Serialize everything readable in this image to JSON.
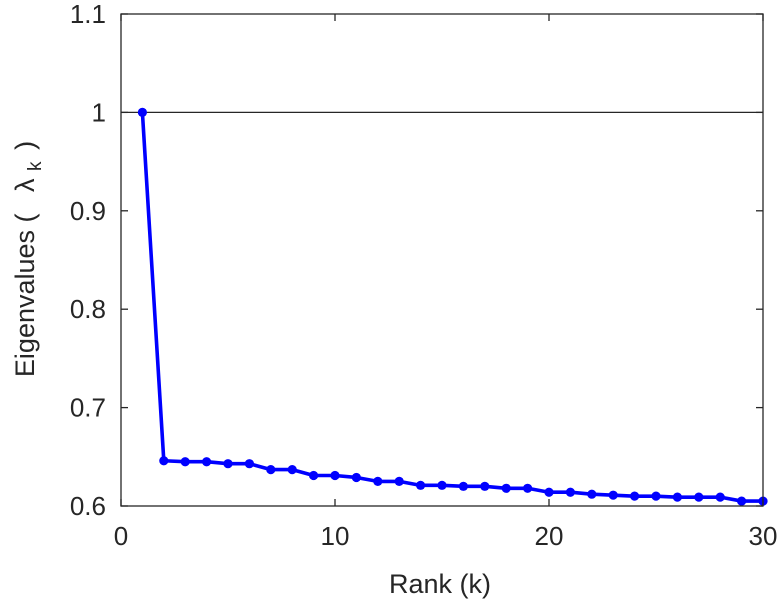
{
  "chart_data": {
    "type": "line",
    "title": "",
    "xlabel": "Rank (k)",
    "ylabel": {
      "prefix": "Eigenvalues (",
      "symbol": "λ",
      "subscript": "k",
      "suffix": ")"
    },
    "xlim": [
      0,
      30
    ],
    "ylim": [
      0.6,
      1.1
    ],
    "xticks": [
      0,
      10,
      20,
      30
    ],
    "xtick_labels": [
      "0",
      "10",
      "20",
      "30"
    ],
    "yticks": [
      0.6,
      0.7,
      0.8,
      0.9,
      1.0,
      1.1
    ],
    "ytick_labels": [
      "0.6",
      "0.7",
      "0.8",
      "0.9",
      "1",
      "1.1"
    ],
    "reference_line": {
      "y": 1.0,
      "color": "#262626"
    },
    "grid": false,
    "legend": "none",
    "series": [
      {
        "color": "#0000ff",
        "marker": "dot",
        "x": [
          1,
          2,
          3,
          4,
          5,
          6,
          7,
          8,
          9,
          10,
          11,
          12,
          13,
          14,
          15,
          16,
          17,
          18,
          19,
          20,
          21,
          22,
          23,
          24,
          25,
          26,
          27,
          28,
          29,
          30
        ],
        "y": [
          1.0,
          0.646,
          0.645,
          0.645,
          0.643,
          0.643,
          0.637,
          0.637,
          0.631,
          0.631,
          0.629,
          0.625,
          0.625,
          0.621,
          0.621,
          0.62,
          0.62,
          0.618,
          0.618,
          0.614,
          0.614,
          0.612,
          0.611,
          0.61,
          0.61,
          0.609,
          0.609,
          0.609,
          0.605,
          0.605
        ]
      }
    ]
  }
}
